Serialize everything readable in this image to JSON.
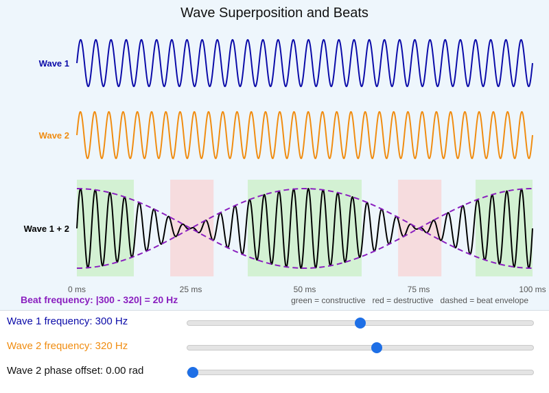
{
  "chart_data": {
    "type": "line",
    "title": "Wave Superposition and Beats",
    "x_unit": "ms",
    "xlim": [
      0,
      100
    ],
    "x_ticks": [
      "0 ms",
      "25 ms",
      "50 ms",
      "75 ms",
      "100 ms"
    ],
    "series": [
      {
        "name": "Wave 1",
        "frequency_hz": 300,
        "amplitude": 1,
        "phase_rad": 0,
        "color": "#0a0aa8"
      },
      {
        "name": "Wave 2",
        "frequency_hz": 320,
        "amplitude": 1,
        "phase_rad": 0,
        "color": "#f08c10"
      },
      {
        "name": "Wave 1 + 2",
        "components": [
          "Wave 1",
          "Wave 2"
        ],
        "color": "#000000"
      }
    ],
    "beat_envelope": {
      "style": "dashed",
      "color": "#8a1fbf"
    },
    "regions": {
      "constructive": {
        "color": "#c9efc6",
        "spans_ms": [
          [
            0,
            12.5
          ],
          [
            37.5,
            62.5
          ],
          [
            87.5,
            100
          ]
        ]
      },
      "destructive": {
        "color": "#f8d3d4",
        "spans_ms": [
          [
            20.5,
            30
          ],
          [
            70.5,
            80
          ]
        ]
      }
    },
    "beat_frequency_text": "Beat frequency: |300 - 320| = 20 Hz",
    "legend_text": "green = constructive   red = destructive   dashed = beat envelope"
  },
  "controls": {
    "wave1": {
      "label": "Wave 1 frequency: 300 Hz",
      "value": 300,
      "min": 100,
      "max": 500,
      "color": "#0a0aa8"
    },
    "wave2": {
      "label": "Wave 2 frequency: 320 Hz",
      "value": 320,
      "min": 100,
      "max": 500,
      "color": "#f08c10"
    },
    "phase": {
      "label": "Wave 2 phase offset: 0.00 rad",
      "value": 0,
      "min": 0,
      "max": 6.28,
      "color": "#111111"
    }
  }
}
